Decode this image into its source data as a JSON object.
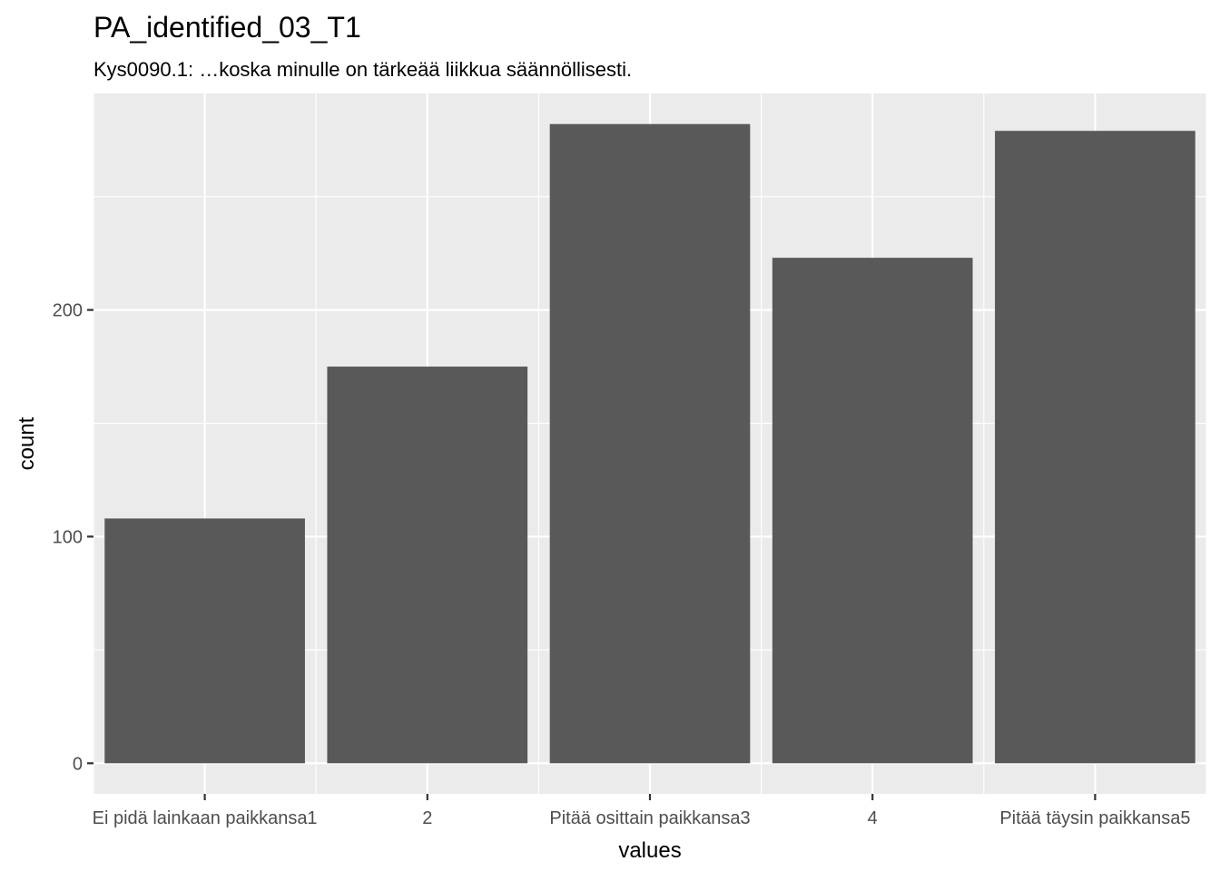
{
  "chart_data": {
    "type": "bar",
    "title": "PA_identified_03_T1",
    "subtitle": "Kys0090.1: …koska minulle on tärkeää liikkua säännöllisesti.",
    "xlabel": "values",
    "ylabel": "count",
    "categories": [
      "Ei pidä lainkaan paikkansa1",
      "2",
      "Pitää osittain paikkansa3",
      "4",
      "Pitää täysin paikkansa5"
    ],
    "values": [
      108,
      175,
      282,
      223,
      279
    ],
    "yticks": [
      0,
      100,
      200
    ],
    "ylim": [
      -13.5,
      295.5
    ],
    "grid": true,
    "legend": "none",
    "colors": {
      "bar": "#595959",
      "panel": "#ebebeb",
      "grid": "#ffffff"
    }
  }
}
